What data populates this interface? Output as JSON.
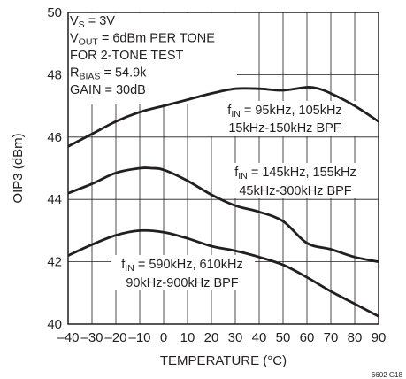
{
  "chart_data": {
    "type": "line",
    "xlabel": "TEMPERATURE (°C)",
    "ylabel": "OIP3 (dBm)",
    "xlim": [
      -40,
      90
    ],
    "ylim": [
      40,
      50
    ],
    "x_ticks": [
      "–40",
      "–30",
      "–20",
      "–10",
      "0",
      "10",
      "20",
      "30",
      "40",
      "50",
      "60",
      "70",
      "80",
      "90"
    ],
    "y_ticks": [
      "40",
      "42",
      "44",
      "46",
      "48",
      "50"
    ],
    "grid": true,
    "conditions": [
      [
        {
          "t": "V"
        },
        {
          "t": "S",
          "sub": true
        },
        {
          "t": " = 3V"
        }
      ],
      [
        {
          "t": "V"
        },
        {
          "t": "OUT",
          "sub": true
        },
        {
          "t": " = 6dBm PER TONE"
        }
      ],
      [
        {
          "t": "FOR 2-TONE TEST"
        }
      ],
      [
        {
          "t": "R"
        },
        {
          "t": "BIAS",
          "sub": true
        },
        {
          "t": " = 54.9k"
        }
      ],
      [
        {
          "t": "GAIN = 30dB"
        }
      ]
    ],
    "series_labels": [
      {
        "line1": [
          {
            "t": "f"
          },
          {
            "t": "IN",
            "sub": true
          },
          {
            "t": " = 95kHz, 105kHz"
          }
        ],
        "line2": "15kHz-150kHz BPF"
      },
      {
        "line1": [
          {
            "t": "f"
          },
          {
            "t": "IN",
            "sub": true
          },
          {
            "t": " = 145kHz, 155kHz"
          }
        ],
        "line2": "45kHz-300kHz BPF"
      },
      {
        "line1": [
          {
            "t": "f"
          },
          {
            "t": "IN",
            "sub": true
          },
          {
            "t": " = 590kHz, 610kHz"
          }
        ],
        "line2": "90kHz-900kHz BPF"
      }
    ],
    "series": [
      {
        "x": [
          -40,
          -30,
          -20,
          -10,
          0,
          10,
          20,
          30,
          40,
          50,
          60,
          65,
          70,
          80,
          90
        ],
        "y": [
          45.7,
          46.1,
          46.5,
          46.8,
          47.0,
          47.2,
          47.4,
          47.55,
          47.55,
          47.5,
          47.6,
          47.55,
          47.4,
          47.0,
          46.5
        ]
      },
      {
        "x": [
          -40,
          -30,
          -20,
          -10,
          -5,
          0,
          10,
          20,
          30,
          40,
          50,
          60,
          70,
          80,
          90
        ],
        "y": [
          44.2,
          44.5,
          44.85,
          45.0,
          45.0,
          44.95,
          44.6,
          44.15,
          43.8,
          43.6,
          43.3,
          42.6,
          42.4,
          42.15,
          42.0
        ]
      },
      {
        "x": [
          -40,
          -30,
          -20,
          -10,
          0,
          10,
          20,
          30,
          40,
          50,
          60,
          70,
          80,
          90
        ],
        "y": [
          42.2,
          42.55,
          42.85,
          43.0,
          42.95,
          42.75,
          42.5,
          42.35,
          42.15,
          41.9,
          41.5,
          41.05,
          40.65,
          40.25
        ]
      }
    ]
  },
  "figure_id": "6602 G18"
}
